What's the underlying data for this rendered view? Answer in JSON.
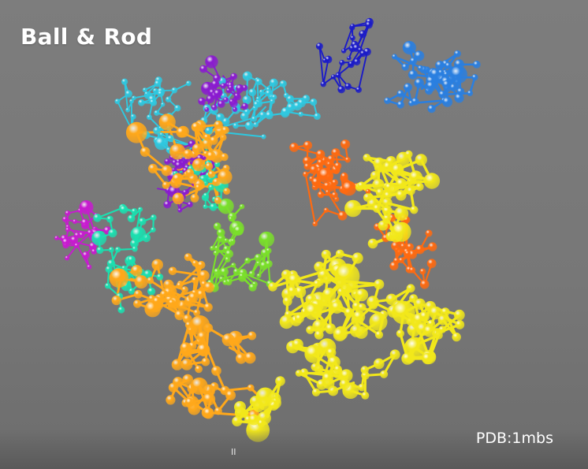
{
  "viewer": {
    "title": "Ball & Rod",
    "pdb_label": "PDB:1mbs",
    "pause_glyph": "II",
    "pause_icon": "pause-icon"
  },
  "colors": {
    "background": "#7a7a7a",
    "chain_palette": [
      "#1a1ac8",
      "#2a7fe0",
      "#2ec8e0",
      "#8a1ad0",
      "#c81ad0",
      "#1ae0b0",
      "#7ae02a",
      "#ff6a10",
      "#ffa81a",
      "#f2e81a"
    ]
  }
}
